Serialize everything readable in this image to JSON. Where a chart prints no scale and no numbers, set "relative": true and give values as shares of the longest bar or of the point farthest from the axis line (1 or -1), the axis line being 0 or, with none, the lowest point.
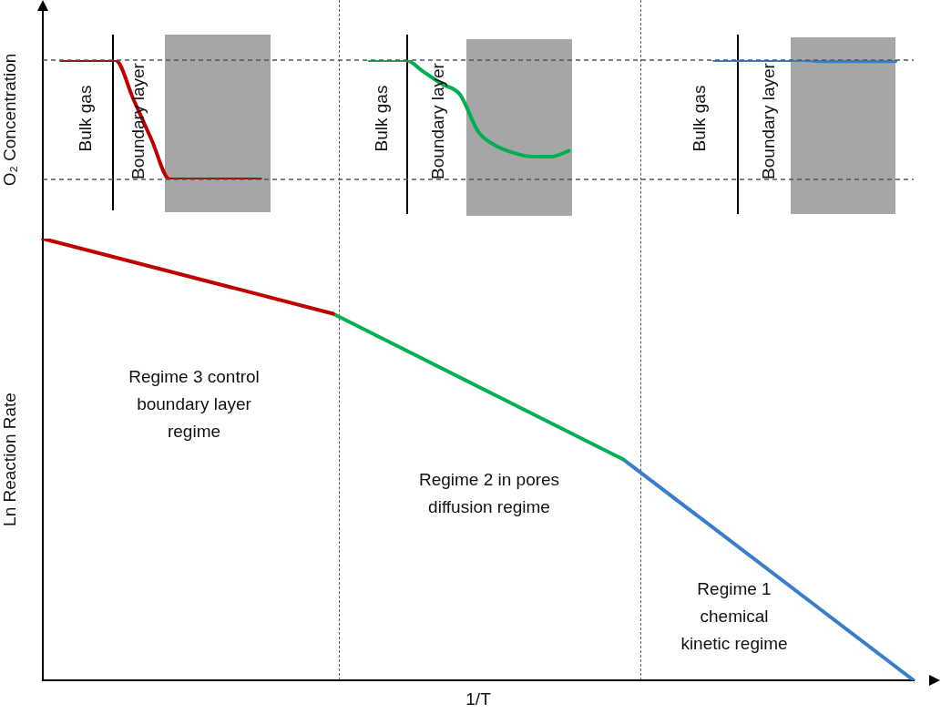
{
  "chart_data": [
    {
      "type": "line",
      "ylabel": "O₂ Concentration",
      "relative": true,
      "categories": [
        null,
        null,
        null,
        null,
        null,
        null,
        null,
        null,
        null,
        null,
        null,
        null,
        null,
        null,
        null,
        null,
        null,
        null,
        null,
        null,
        null,
        null,
        null,
        null,
        null,
        null,
        null,
        null,
        null,
        null,
        null,
        null,
        null,
        null,
        null,
        null,
        null,
        null,
        null,
        null,
        null,
        null,
        null,
        null,
        null,
        null,
        null,
        null,
        null
      ],
      "series": [
        {
          "color": "#c00000",
          "values": [
            null,
            1,
            1,
            1,
            1,
            0.67,
            0.33,
            0,
            0,
            0,
            0,
            0,
            0,
            null,
            null,
            null,
            null,
            null,
            null,
            null,
            null,
            null,
            null,
            null,
            null,
            null,
            null,
            null,
            null,
            null,
            null,
            null,
            null,
            null,
            null,
            null,
            null,
            null,
            null,
            null,
            null,
            null,
            null,
            null,
            null,
            null,
            null,
            null,
            null
          ]
        },
        {
          "color": "#00b050",
          "values": [
            null,
            null,
            null,
            null,
            null,
            null,
            null,
            null,
            null,
            null,
            null,
            null,
            null,
            null,
            null,
            null,
            null,
            null,
            1,
            1,
            1,
            0.9,
            0.8,
            0.71,
            0.4,
            0.28,
            0.22,
            0.19,
            0.19,
            0.24,
            null,
            null,
            null,
            null,
            null,
            null,
            null,
            null,
            null,
            null,
            null,
            null,
            null,
            null,
            null,
            null,
            null,
            null,
            null
          ]
        },
        {
          "color": "#3a7dc9",
          "values": [
            null,
            null,
            null,
            null,
            null,
            null,
            null,
            null,
            null,
            null,
            null,
            null,
            null,
            null,
            null,
            null,
            null,
            null,
            null,
            null,
            null,
            null,
            null,
            null,
            null,
            null,
            null,
            null,
            null,
            null,
            null,
            null,
            null,
            null,
            null,
            null,
            null,
            1,
            1,
            1,
            1,
            1,
            1,
            0.99,
            0.99,
            0.99,
            0.99,
            0.99,
            null
          ]
        }
      ],
      "ref_lines": [
        {
          "axis": "y",
          "value": 1,
          "color": "#555555",
          "line_style": "dashed"
        },
        {
          "axis": "y",
          "value": 0,
          "color": "#555555",
          "line_style": "dashed"
        }
      ],
      "annotations": [
        "Bulk gas",
        "Boundary layer",
        "Bulk gas",
        "Boundary layer",
        "Bulk gas",
        "Boundary layer"
      ]
    },
    {
      "type": "line",
      "xlabel": "1/T",
      "ylabel": "Ln Reaction Rate",
      "relative": true,
      "categories": [
        null,
        null,
        null,
        null
      ],
      "series": [
        {
          "color": "#c00000",
          "values": [
            1,
            0.83,
            null,
            null
          ]
        },
        {
          "color": "#00b050",
          "values": [
            null,
            0.83,
            0.5,
            null
          ]
        },
        {
          "color": "#3a7dc9",
          "values": [
            null,
            null,
            0.5,
            0
          ]
        }
      ],
      "annotations": [
        "Regime 3 control\nboundary layer\nregime",
        "Regime 2 in pores\ndiffusion regime",
        "Regime 1\nchemical\nkinetic regime"
      ]
    }
  ]
}
